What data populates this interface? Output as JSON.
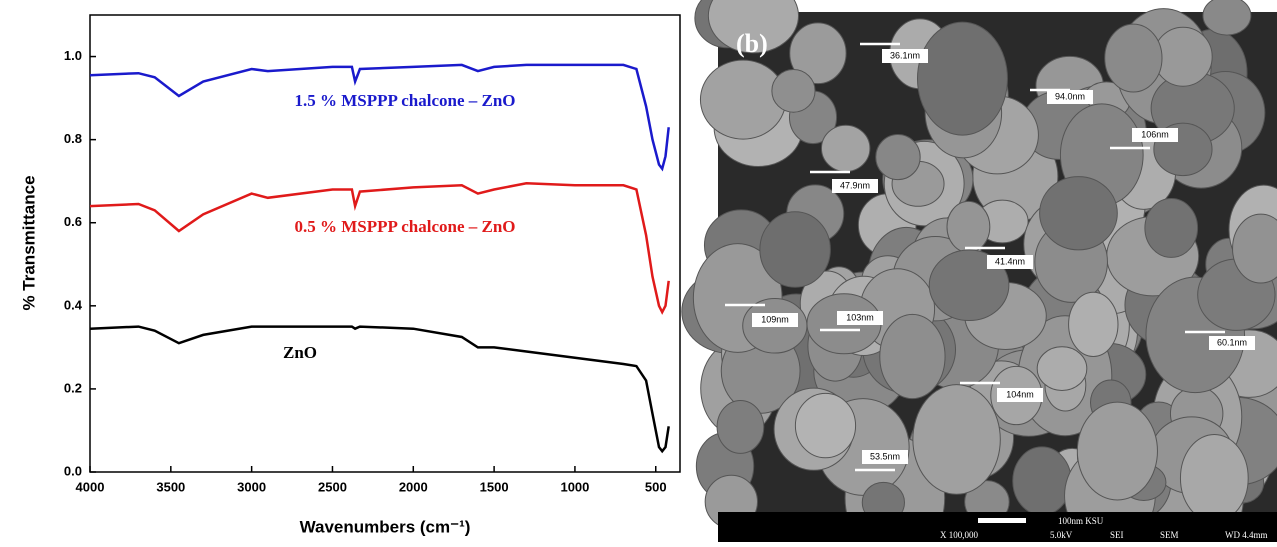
{
  "chart_data": {
    "type": "line",
    "y_label": "% Transmittance",
    "x_label": "Wavenumbers (cm⁻¹)",
    "x": [
      4000,
      3700,
      3600,
      3450,
      3300,
      3000,
      2900,
      2500,
      2380,
      2360,
      2330,
      2000,
      1700,
      1600,
      1500,
      1300,
      1000,
      700,
      620,
      560,
      520,
      480,
      460,
      440,
      420
    ],
    "series": [
      {
        "name": "1.5 % MSPPP chalcone – ZnO",
        "color": "#1a1acc",
        "values": [
          0.955,
          0.96,
          0.95,
          0.905,
          0.94,
          0.97,
          0.965,
          0.975,
          0.975,
          0.94,
          0.97,
          0.975,
          0.98,
          0.965,
          0.975,
          0.98,
          0.98,
          0.98,
          0.97,
          0.88,
          0.8,
          0.74,
          0.73,
          0.76,
          0.83
        ]
      },
      {
        "name": "0.5 % MSPPP chalcone – ZnO",
        "color": "#e01a1a",
        "values": [
          0.64,
          0.645,
          0.63,
          0.58,
          0.62,
          0.67,
          0.66,
          0.68,
          0.68,
          0.64,
          0.675,
          0.685,
          0.69,
          0.67,
          0.68,
          0.695,
          0.69,
          0.69,
          0.68,
          0.57,
          0.47,
          0.4,
          0.385,
          0.4,
          0.46
        ]
      },
      {
        "name": "ZnO",
        "color": "#000000",
        "values": [
          0.345,
          0.35,
          0.34,
          0.31,
          0.33,
          0.35,
          0.35,
          0.35,
          0.35,
          0.345,
          0.35,
          0.345,
          0.325,
          0.3,
          0.3,
          0.29,
          0.275,
          0.26,
          0.255,
          0.22,
          0.14,
          0.06,
          0.05,
          0.06,
          0.11
        ]
      }
    ],
    "xlim": [
      4000,
      350
    ],
    "ylim": [
      0,
      1.1
    ],
    "xticks": [
      4000,
      3500,
      3000,
      2500,
      2000,
      1500,
      1000,
      500
    ],
    "yticks": [
      {
        "value": 0,
        "label": "0.0"
      },
      0.2,
      0.4,
      0.6,
      0.8,
      {
        "value": 1,
        "label": "1.0"
      }
    ]
  },
  "sem_image": {
    "panel_label": "(b)",
    "measurements": [
      "36.1nm",
      "94.0nm",
      "106nm",
      "47.9nm",
      "41.4nm",
      "109nm",
      "103nm",
      "60.1nm",
      "104nm",
      "53.5nm"
    ],
    "footer": [
      "100nm KSU",
      "X 100,000",
      "5.0kV",
      "SEI",
      "SEM",
      "WD 4.4mm"
    ]
  }
}
